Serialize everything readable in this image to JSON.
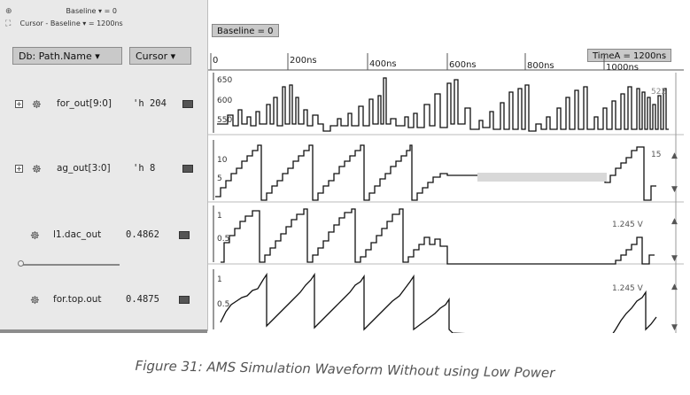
{
  "toolbar": {
    "baseline_text": "Baseline ▾ = 0",
    "cursor_baseline_text": "Cursor - Baseline ▾ = 1200ns"
  },
  "header": {
    "db_path_name_button": "Db: Path.Name ▾",
    "cursor_button": "Cursor ▾",
    "baseline_pill": "Baseline = 0",
    "timea_pill": "TimeA = 1200ns"
  },
  "time_axis": {
    "ticks": [
      "0",
      "200ns",
      "400ns",
      "600ns",
      "800ns",
      "1000ns"
    ]
  },
  "signals": [
    {
      "name": "for_out[9:0]",
      "value": "'h 204",
      "icon": "analog-wave-icon",
      "expandable": true,
      "yticks": [
        "650",
        "600",
        "550"
      ],
      "right_label": "522"
    },
    {
      "name": "ag_out[3:0]",
      "value": "'h 8",
      "icon": "analog-wave-icon",
      "expandable": true,
      "yticks": [
        "10",
        "5"
      ],
      "right_label": "15"
    },
    {
      "name": "l1.dac_out",
      "value": "0.4862",
      "icon": "analog-wave-icon",
      "expandable": false,
      "yticks": [
        "1",
        "0.5"
      ],
      "right_label": "1.245 V"
    },
    {
      "name": "for.top.out",
      "value": "0.4875",
      "icon": "analog-wave-icon",
      "expandable": false,
      "yticks": [
        "1",
        "0.5"
      ],
      "right_label": "1.245 V"
    }
  ],
  "caption": "Figure 31: AMS Simulation Waveform Without using Low Power"
}
